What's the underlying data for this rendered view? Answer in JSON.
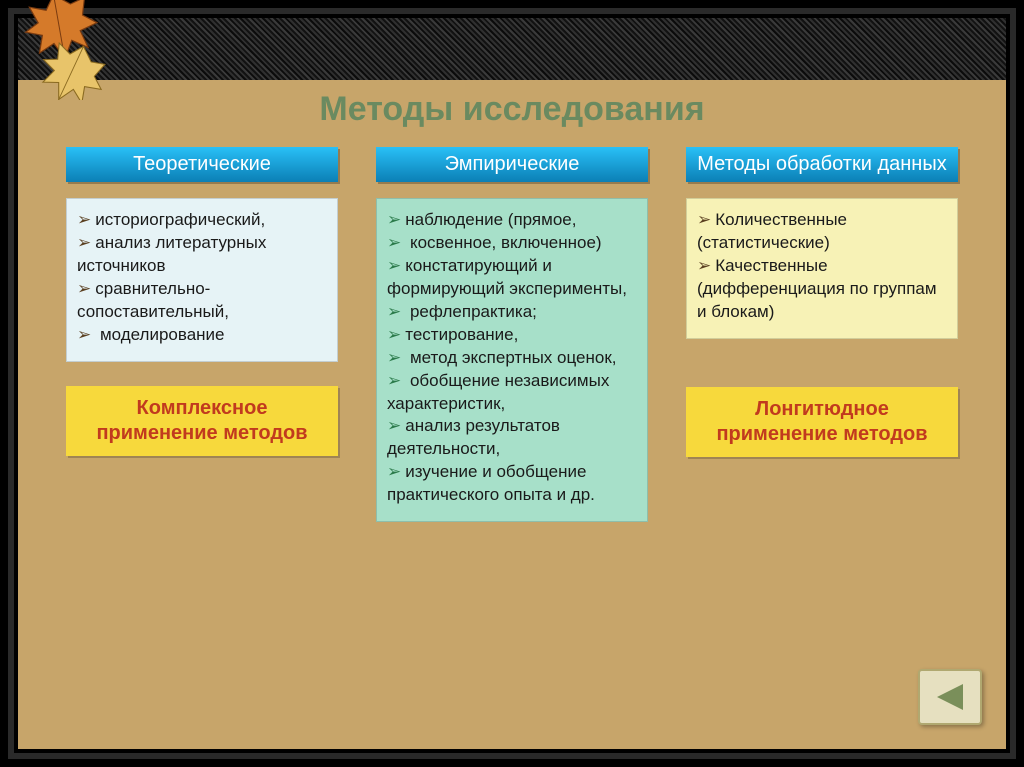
{
  "colors": {
    "slide_bg": "#c7a56a",
    "title_color": "#6a8a60",
    "cat_gradient_top": "#29c0f7",
    "cat_gradient_bottom": "#0b7fb5",
    "col1_box_bg": "#e6f3f6",
    "col2_box_bg": "#a7e0c9",
    "col3_box_bg": "#f7f2b6",
    "yellow_box_bg": "#f7d93c",
    "yellow_box_text": "#c13a1e",
    "bullet_color": "#5a3f20",
    "bullet_color_alt": "#2a7a4a",
    "text_color": "#1a1a1a",
    "nav_bg": "#e6e0c0",
    "nav_border": "#b0a870",
    "nav_arrow": "#7a8f5a"
  },
  "title": "Методы исследования",
  "categories": {
    "col1": "Теоретические",
    "col2": "Эмпирические",
    "col3": "Методы обработки данных"
  },
  "lists": {
    "col1": [
      "историографический,",
      "анализ литературных источников",
      "сравнительно-сопоставительный,",
      " моделирование"
    ],
    "col2": [
      "наблюдение (прямое,",
      " косвенное, включенное)",
      "констатирующий и формирующий эксперименты,",
      " рефлепрактика;",
      "тестирование,",
      " метод экспертных оценок,",
      " обобщение независимых характеристик,",
      "анализ результатов деятельности,",
      "изучение и обобщение практического опыта и др."
    ],
    "col3": [
      "Количественные (статистические)",
      "Качественные  (дифференциация по группам и блокам)"
    ]
  },
  "callouts": {
    "left": "Комплексное применение методов",
    "right": "Лонгитюдное применение методов"
  },
  "leaf": {
    "leaf1_fill": "#d57a2a",
    "leaf1_stroke": "#7a3b10",
    "leaf2_fill": "#e8c46a",
    "leaf2_stroke": "#8a6a20"
  }
}
